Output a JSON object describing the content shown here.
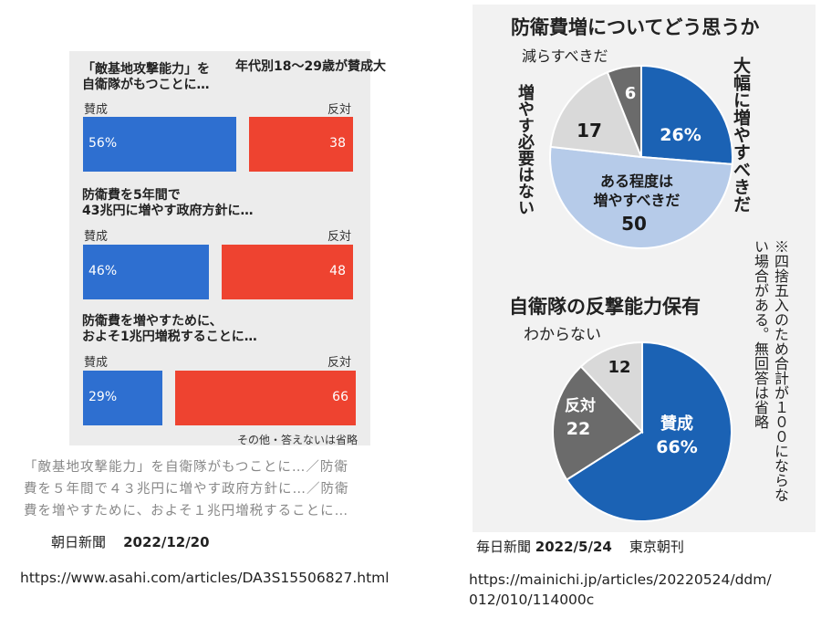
{
  "left": {
    "header_note": "年代別18〜29歳が賛成大",
    "questions": [
      {
        "title_lines": [
          "「敵基地攻撃能力」を",
          "自衛隊がもつことに…"
        ],
        "agree_label": "賛成",
        "oppose_label": "反対",
        "agree_text": "56%",
        "oppose_text": "38"
      },
      {
        "title_lines": [
          "防衛費を5年間で",
          "43兆円に増やす政府方針に…"
        ],
        "agree_label": "賛成",
        "oppose_label": "反対",
        "agree_text": "46%",
        "oppose_text": "48"
      },
      {
        "title_lines": [
          "防衛費を増やすために、",
          "およそ1兆円増税することに…"
        ],
        "agree_label": "賛成",
        "oppose_label": "反対",
        "agree_text": "29%",
        "oppose_text": "66"
      }
    ],
    "footnote": "その他・答えないは省略",
    "caption_lines": [
      "「敵基地攻撃能力」を自衛隊がもつことに…／防衛",
      "費を５年間で４３兆円に増やす政府方針に…／防衛",
      "費を増やすために、およそ１兆円増税することに…"
    ],
    "source_name": "朝日新聞",
    "source_date": "2022/12/20",
    "url": "https://www.asahi.com/articles/DA3S15506827.html"
  },
  "right": {
    "pie1_title": "防衛費増についてどう思うか",
    "pie1_labels": {
      "reduce": "減らすべきだ",
      "no_increase": "増やす必要はない",
      "significant": "大幅に増やすべきだ",
      "some_line1": "ある程度は",
      "some_line2": "増やすべきだ"
    },
    "pie1_values": {
      "significant": "26%",
      "some": "50",
      "no_increase": "17",
      "reduce": "6"
    },
    "pie2_title": "自衛隊の反撃能力保有",
    "pie2_labels": {
      "unknown": "わからない",
      "oppose": "反対",
      "agree": "賛成"
    },
    "pie2_values": {
      "unknown": "12",
      "oppose": "22",
      "agree": "66%"
    },
    "note": "※四捨五入のため合計が１００にならない場合がある。無回答は省略",
    "source_name": "毎日新聞",
    "source_date": "2022/5/24",
    "source_edition": "東京朝刊",
    "url_lines": [
      "https://mainichi.jp/articles/20220524/ddm/",
      "012/010/114000c"
    ]
  },
  "chart_data": [
    {
      "type": "bar",
      "categories": [
        "「敵基地攻撃能力」を自衛隊がもつことに…",
        "防衛費を5年間で43兆円に増やす政府方針に…",
        "防衛費を増やすために、およそ1兆円増税することに…"
      ],
      "series": [
        {
          "name": "賛成",
          "values": [
            56,
            46,
            29
          ]
        },
        {
          "name": "反対",
          "values": [
            38,
            48,
            66
          ]
        }
      ],
      "annotations": [
        "年代別18〜29歳が賛成大",
        "その他・答えないは省略"
      ],
      "colors": {
        "賛成": "#2e6fd0",
        "反対": "#ee4330"
      }
    },
    {
      "type": "pie",
      "title": "防衛費増についてどう思うか",
      "categories": [
        "大幅に増やすべきだ",
        "ある程度は増やすべきだ",
        "増やす必要はない",
        "減らすべきだ"
      ],
      "values": [
        26,
        50,
        17,
        6
      ],
      "colors": [
        "#1b62b4",
        "#b6cbe9",
        "#d9d9d9",
        "#6b6b6b"
      ]
    },
    {
      "type": "pie",
      "title": "自衛隊の反撃能力保有",
      "categories": [
        "賛成",
        "反対",
        "わからない"
      ],
      "values": [
        66,
        22,
        12
      ],
      "colors": [
        "#1b62b4",
        "#6b6b6b",
        "#d9d9d9"
      ]
    }
  ]
}
